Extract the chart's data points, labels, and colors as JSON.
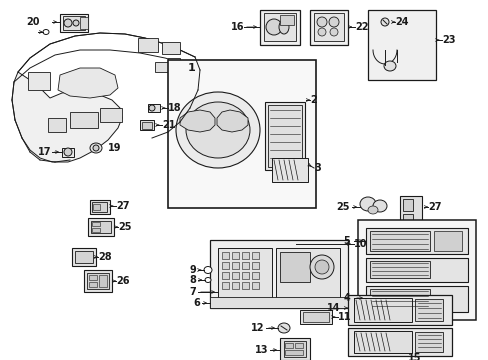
{
  "bg_color": "#ffffff",
  "line_color": "#1a1a1a",
  "figsize": [
    4.89,
    3.6
  ],
  "dpi": 100,
  "image_data": "use_drawing"
}
